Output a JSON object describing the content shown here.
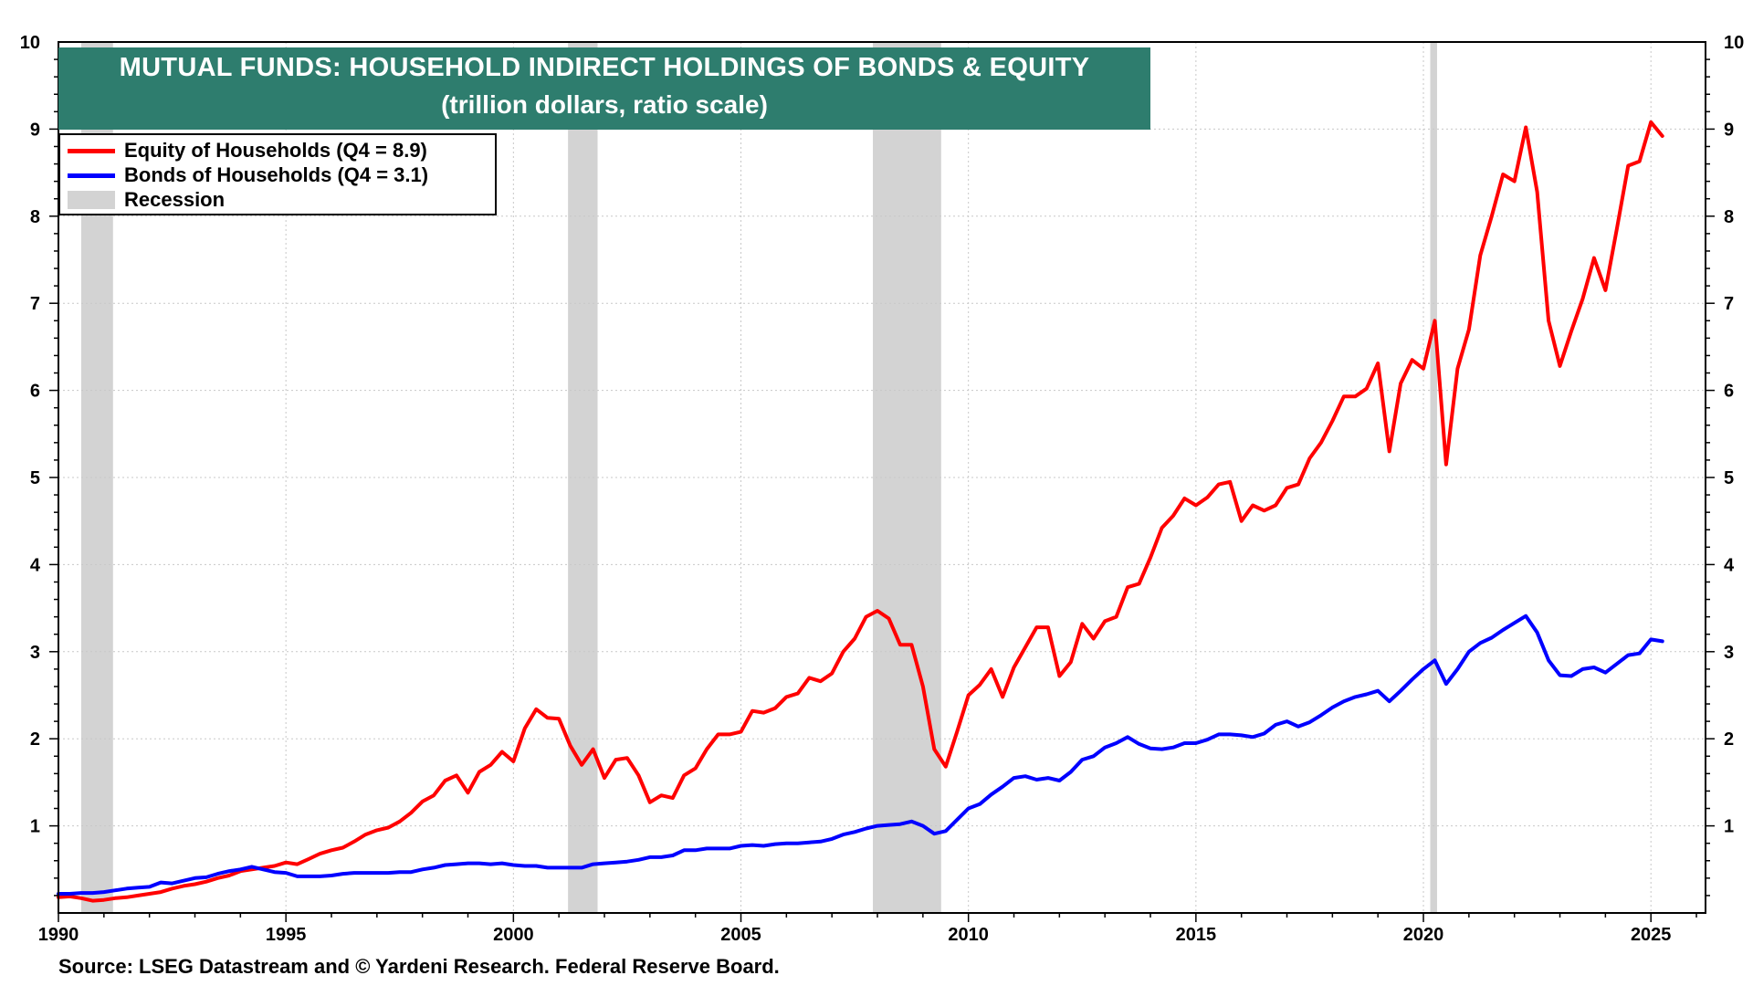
{
  "title": {
    "line1": "MUTUAL FUNDS: HOUSEHOLD INDIRECT HOLDINGS OF BONDS & EQUITY",
    "line2": "(trillion dollars, ratio scale)"
  },
  "legend": {
    "equity": "Equity of Households (Q4 = 8.9)",
    "bonds": "Bonds of Households (Q4 = 3.1)",
    "recession": "Recession"
  },
  "source": "Source: LSEG Datastream and © Yardeni Research. Federal Reserve Board.",
  "colors": {
    "equity": "#ff0000",
    "bonds": "#0000ff",
    "recession": "#d3d3d3",
    "title_bg": "#2e7d6e"
  },
  "chart_data": {
    "type": "line",
    "x_range": [
      1990,
      2026.2
    ],
    "y_range": [
      0,
      10
    ],
    "x_ticks": [
      "1990",
      "1995",
      "2000",
      "2005",
      "2010",
      "2015",
      "2020",
      "2025"
    ],
    "y_ticks": [
      "1",
      "2",
      "3",
      "4",
      "5",
      "6",
      "7",
      "8",
      "9",
      "10"
    ],
    "grid": true,
    "legend_position": "top-left",
    "recessions": [
      [
        1990.5,
        1991.2
      ],
      [
        2001.2,
        2001.85
      ],
      [
        2007.9,
        2009.4
      ],
      [
        2020.15,
        2020.3
      ]
    ],
    "series": [
      {
        "name": "Equity of Households (Q4 = 8.9)",
        "color": "#ff0000",
        "points": [
          [
            1990.0,
            0.18
          ],
          [
            1990.25,
            0.19
          ],
          [
            1990.5,
            0.17
          ],
          [
            1990.75,
            0.14
          ],
          [
            1991.0,
            0.15
          ],
          [
            1991.25,
            0.17
          ],
          [
            1991.5,
            0.18
          ],
          [
            1991.75,
            0.2
          ],
          [
            1992.0,
            0.22
          ],
          [
            1992.25,
            0.24
          ],
          [
            1992.5,
            0.28
          ],
          [
            1992.75,
            0.31
          ],
          [
            1993.0,
            0.33
          ],
          [
            1993.25,
            0.36
          ],
          [
            1993.5,
            0.4
          ],
          [
            1993.75,
            0.43
          ],
          [
            1994.0,
            0.48
          ],
          [
            1994.25,
            0.5
          ],
          [
            1994.5,
            0.52
          ],
          [
            1994.75,
            0.54
          ],
          [
            1995.0,
            0.58
          ],
          [
            1995.25,
            0.56
          ],
          [
            1995.5,
            0.62
          ],
          [
            1995.75,
            0.68
          ],
          [
            1996.0,
            0.72
          ],
          [
            1996.25,
            0.75
          ],
          [
            1996.5,
            0.82
          ],
          [
            1996.75,
            0.9
          ],
          [
            1997.0,
            0.95
          ],
          [
            1997.25,
            0.98
          ],
          [
            1997.5,
            1.05
          ],
          [
            1997.75,
            1.15
          ],
          [
            1998.0,
            1.28
          ],
          [
            1998.25,
            1.35
          ],
          [
            1998.5,
            1.52
          ],
          [
            1998.75,
            1.58
          ],
          [
            1999.0,
            1.38
          ],
          [
            1999.25,
            1.62
          ],
          [
            1999.5,
            1.7
          ],
          [
            1999.75,
            1.85
          ],
          [
            2000.0,
            1.74
          ],
          [
            2000.25,
            2.12
          ],
          [
            2000.5,
            2.34
          ],
          [
            2000.75,
            2.24
          ],
          [
            2001.0,
            2.23
          ],
          [
            2001.25,
            1.92
          ],
          [
            2001.5,
            1.7
          ],
          [
            2001.75,
            1.88
          ],
          [
            2002.0,
            1.55
          ],
          [
            2002.25,
            1.76
          ],
          [
            2002.5,
            1.78
          ],
          [
            2002.75,
            1.58
          ],
          [
            2003.0,
            1.27
          ],
          [
            2003.25,
            1.35
          ],
          [
            2003.5,
            1.32
          ],
          [
            2003.75,
            1.58
          ],
          [
            2004.0,
            1.66
          ],
          [
            2004.25,
            1.88
          ],
          [
            2004.5,
            2.05
          ],
          [
            2004.75,
            2.05
          ],
          [
            2005.0,
            2.08
          ],
          [
            2005.25,
            2.32
          ],
          [
            2005.5,
            2.3
          ],
          [
            2005.75,
            2.35
          ],
          [
            2006.0,
            2.48
          ],
          [
            2006.25,
            2.52
          ],
          [
            2006.5,
            2.7
          ],
          [
            2006.75,
            2.66
          ],
          [
            2007.0,
            2.75
          ],
          [
            2007.25,
            3.0
          ],
          [
            2007.5,
            3.15
          ],
          [
            2007.75,
            3.4
          ],
          [
            2008.0,
            3.47
          ],
          [
            2008.25,
            3.38
          ],
          [
            2008.5,
            3.08
          ],
          [
            2008.75,
            3.08
          ],
          [
            2009.0,
            2.6
          ],
          [
            2009.25,
            1.88
          ],
          [
            2009.5,
            1.68
          ],
          [
            2009.75,
            2.08
          ],
          [
            2010.0,
            2.5
          ],
          [
            2010.25,
            2.62
          ],
          [
            2010.5,
            2.8
          ],
          [
            2010.75,
            2.48
          ],
          [
            2011.0,
            2.82
          ],
          [
            2011.25,
            3.05
          ],
          [
            2011.5,
            3.28
          ],
          [
            2011.75,
            3.28
          ],
          [
            2012.0,
            2.72
          ],
          [
            2012.25,
            2.88
          ],
          [
            2012.5,
            3.32
          ],
          [
            2012.75,
            3.15
          ],
          [
            2013.0,
            3.35
          ],
          [
            2013.25,
            3.4
          ],
          [
            2013.5,
            3.74
          ],
          [
            2013.75,
            3.78
          ],
          [
            2014.0,
            4.08
          ],
          [
            2014.25,
            4.42
          ],
          [
            2014.5,
            4.56
          ],
          [
            2014.75,
            4.76
          ],
          [
            2015.0,
            4.68
          ],
          [
            2015.25,
            4.77
          ],
          [
            2015.5,
            4.92
          ],
          [
            2015.75,
            4.95
          ],
          [
            2016.0,
            4.5
          ],
          [
            2016.25,
            4.68
          ],
          [
            2016.5,
            4.62
          ],
          [
            2016.75,
            4.68
          ],
          [
            2017.0,
            4.88
          ],
          [
            2017.25,
            4.92
          ],
          [
            2017.5,
            5.22
          ],
          [
            2017.75,
            5.4
          ],
          [
            2018.0,
            5.65
          ],
          [
            2018.25,
            5.93
          ],
          [
            2018.5,
            5.93
          ],
          [
            2018.75,
            6.02
          ],
          [
            2019.0,
            6.31
          ],
          [
            2019.25,
            5.3
          ],
          [
            2019.5,
            6.08
          ],
          [
            2019.75,
            6.35
          ],
          [
            2020.0,
            6.25
          ],
          [
            2020.25,
            6.8
          ],
          [
            2020.5,
            5.15
          ],
          [
            2020.75,
            6.25
          ],
          [
            2021.0,
            6.7
          ],
          [
            2021.25,
            7.55
          ],
          [
            2021.5,
            8.0
          ],
          [
            2021.75,
            8.48
          ],
          [
            2022.0,
            8.4
          ],
          [
            2022.25,
            9.02
          ],
          [
            2022.5,
            8.28
          ],
          [
            2022.75,
            6.8
          ],
          [
            2023.0,
            6.28
          ],
          [
            2023.25,
            6.68
          ],
          [
            2023.5,
            7.05
          ],
          [
            2023.75,
            7.52
          ],
          [
            2024.0,
            7.15
          ],
          [
            2024.25,
            7.85
          ],
          [
            2024.5,
            8.58
          ],
          [
            2024.75,
            8.63
          ],
          [
            2025.0,
            9.08
          ],
          [
            2025.25,
            8.92
          ]
        ]
      },
      {
        "name": "Bonds of Households (Q4 = 3.1)",
        "color": "#0000ff",
        "points": [
          [
            1990.0,
            0.22
          ],
          [
            1990.25,
            0.22
          ],
          [
            1990.5,
            0.23
          ],
          [
            1990.75,
            0.23
          ],
          [
            1991.0,
            0.24
          ],
          [
            1991.25,
            0.26
          ],
          [
            1991.5,
            0.28
          ],
          [
            1991.75,
            0.29
          ],
          [
            1992.0,
            0.3
          ],
          [
            1992.25,
            0.35
          ],
          [
            1992.5,
            0.34
          ],
          [
            1992.75,
            0.37
          ],
          [
            1993.0,
            0.4
          ],
          [
            1993.25,
            0.41
          ],
          [
            1993.5,
            0.45
          ],
          [
            1993.75,
            0.48
          ],
          [
            1994.0,
            0.5
          ],
          [
            1994.25,
            0.53
          ],
          [
            1994.5,
            0.5
          ],
          [
            1994.75,
            0.47
          ],
          [
            1995.0,
            0.46
          ],
          [
            1995.25,
            0.42
          ],
          [
            1995.5,
            0.42
          ],
          [
            1995.75,
            0.42
          ],
          [
            1996.0,
            0.43
          ],
          [
            1996.25,
            0.45
          ],
          [
            1996.5,
            0.46
          ],
          [
            1996.75,
            0.46
          ],
          [
            1997.0,
            0.46
          ],
          [
            1997.25,
            0.46
          ],
          [
            1997.5,
            0.47
          ],
          [
            1997.75,
            0.47
          ],
          [
            1998.0,
            0.5
          ],
          [
            1998.25,
            0.52
          ],
          [
            1998.5,
            0.55
          ],
          [
            1998.75,
            0.56
          ],
          [
            1999.0,
            0.57
          ],
          [
            1999.25,
            0.57
          ],
          [
            1999.5,
            0.56
          ],
          [
            1999.75,
            0.57
          ],
          [
            2000.0,
            0.55
          ],
          [
            2000.25,
            0.54
          ],
          [
            2000.5,
            0.54
          ],
          [
            2000.75,
            0.52
          ],
          [
            2001.0,
            0.52
          ],
          [
            2001.25,
            0.52
          ],
          [
            2001.5,
            0.52
          ],
          [
            2001.75,
            0.56
          ],
          [
            2002.0,
            0.57
          ],
          [
            2002.25,
            0.58
          ],
          [
            2002.5,
            0.59
          ],
          [
            2002.75,
            0.61
          ],
          [
            2003.0,
            0.64
          ],
          [
            2003.25,
            0.64
          ],
          [
            2003.5,
            0.66
          ],
          [
            2003.75,
            0.72
          ],
          [
            2004.0,
            0.72
          ],
          [
            2004.25,
            0.74
          ],
          [
            2004.5,
            0.74
          ],
          [
            2004.75,
            0.74
          ],
          [
            2005.0,
            0.77
          ],
          [
            2005.25,
            0.78
          ],
          [
            2005.5,
            0.77
          ],
          [
            2005.75,
            0.79
          ],
          [
            2006.0,
            0.8
          ],
          [
            2006.25,
            0.8
          ],
          [
            2006.5,
            0.81
          ],
          [
            2006.75,
            0.82
          ],
          [
            2007.0,
            0.85
          ],
          [
            2007.25,
            0.9
          ],
          [
            2007.5,
            0.93
          ],
          [
            2007.75,
            0.97
          ],
          [
            2008.0,
            1.0
          ],
          [
            2008.25,
            1.01
          ],
          [
            2008.5,
            1.02
          ],
          [
            2008.75,
            1.05
          ],
          [
            2009.0,
            1.0
          ],
          [
            2009.25,
            0.91
          ],
          [
            2009.5,
            0.94
          ],
          [
            2009.75,
            1.07
          ],
          [
            2010.0,
            1.2
          ],
          [
            2010.25,
            1.25
          ],
          [
            2010.5,
            1.36
          ],
          [
            2010.75,
            1.45
          ],
          [
            2011.0,
            1.55
          ],
          [
            2011.25,
            1.57
          ],
          [
            2011.5,
            1.53
          ],
          [
            2011.75,
            1.55
          ],
          [
            2012.0,
            1.52
          ],
          [
            2012.25,
            1.62
          ],
          [
            2012.5,
            1.76
          ],
          [
            2012.75,
            1.8
          ],
          [
            2013.0,
            1.9
          ],
          [
            2013.25,
            1.95
          ],
          [
            2013.5,
            2.02
          ],
          [
            2013.75,
            1.94
          ],
          [
            2014.0,
            1.89
          ],
          [
            2014.25,
            1.88
          ],
          [
            2014.5,
            1.9
          ],
          [
            2014.75,
            1.95
          ],
          [
            2015.0,
            1.95
          ],
          [
            2015.25,
            1.99
          ],
          [
            2015.5,
            2.05
          ],
          [
            2015.75,
            2.05
          ],
          [
            2016.0,
            2.04
          ],
          [
            2016.25,
            2.02
          ],
          [
            2016.5,
            2.06
          ],
          [
            2016.75,
            2.16
          ],
          [
            2017.0,
            2.2
          ],
          [
            2017.25,
            2.14
          ],
          [
            2017.5,
            2.19
          ],
          [
            2017.75,
            2.27
          ],
          [
            2018.0,
            2.36
          ],
          [
            2018.25,
            2.43
          ],
          [
            2018.5,
            2.48
          ],
          [
            2018.75,
            2.51
          ],
          [
            2019.0,
            2.55
          ],
          [
            2019.25,
            2.43
          ],
          [
            2019.5,
            2.55
          ],
          [
            2019.75,
            2.68
          ],
          [
            2020.0,
            2.8
          ],
          [
            2020.25,
            2.9
          ],
          [
            2020.5,
            2.63
          ],
          [
            2020.75,
            2.8
          ],
          [
            2021.0,
            3.0
          ],
          [
            2021.25,
            3.1
          ],
          [
            2021.5,
            3.16
          ],
          [
            2021.75,
            3.25
          ],
          [
            2022.0,
            3.33
          ],
          [
            2022.25,
            3.41
          ],
          [
            2022.5,
            3.22
          ],
          [
            2022.75,
            2.9
          ],
          [
            2023.0,
            2.73
          ],
          [
            2023.25,
            2.72
          ],
          [
            2023.5,
            2.8
          ],
          [
            2023.75,
            2.82
          ],
          [
            2024.0,
            2.76
          ],
          [
            2024.25,
            2.86
          ],
          [
            2024.5,
            2.96
          ],
          [
            2024.75,
            2.98
          ],
          [
            2025.0,
            3.14
          ],
          [
            2025.25,
            3.12
          ]
        ]
      }
    ]
  }
}
